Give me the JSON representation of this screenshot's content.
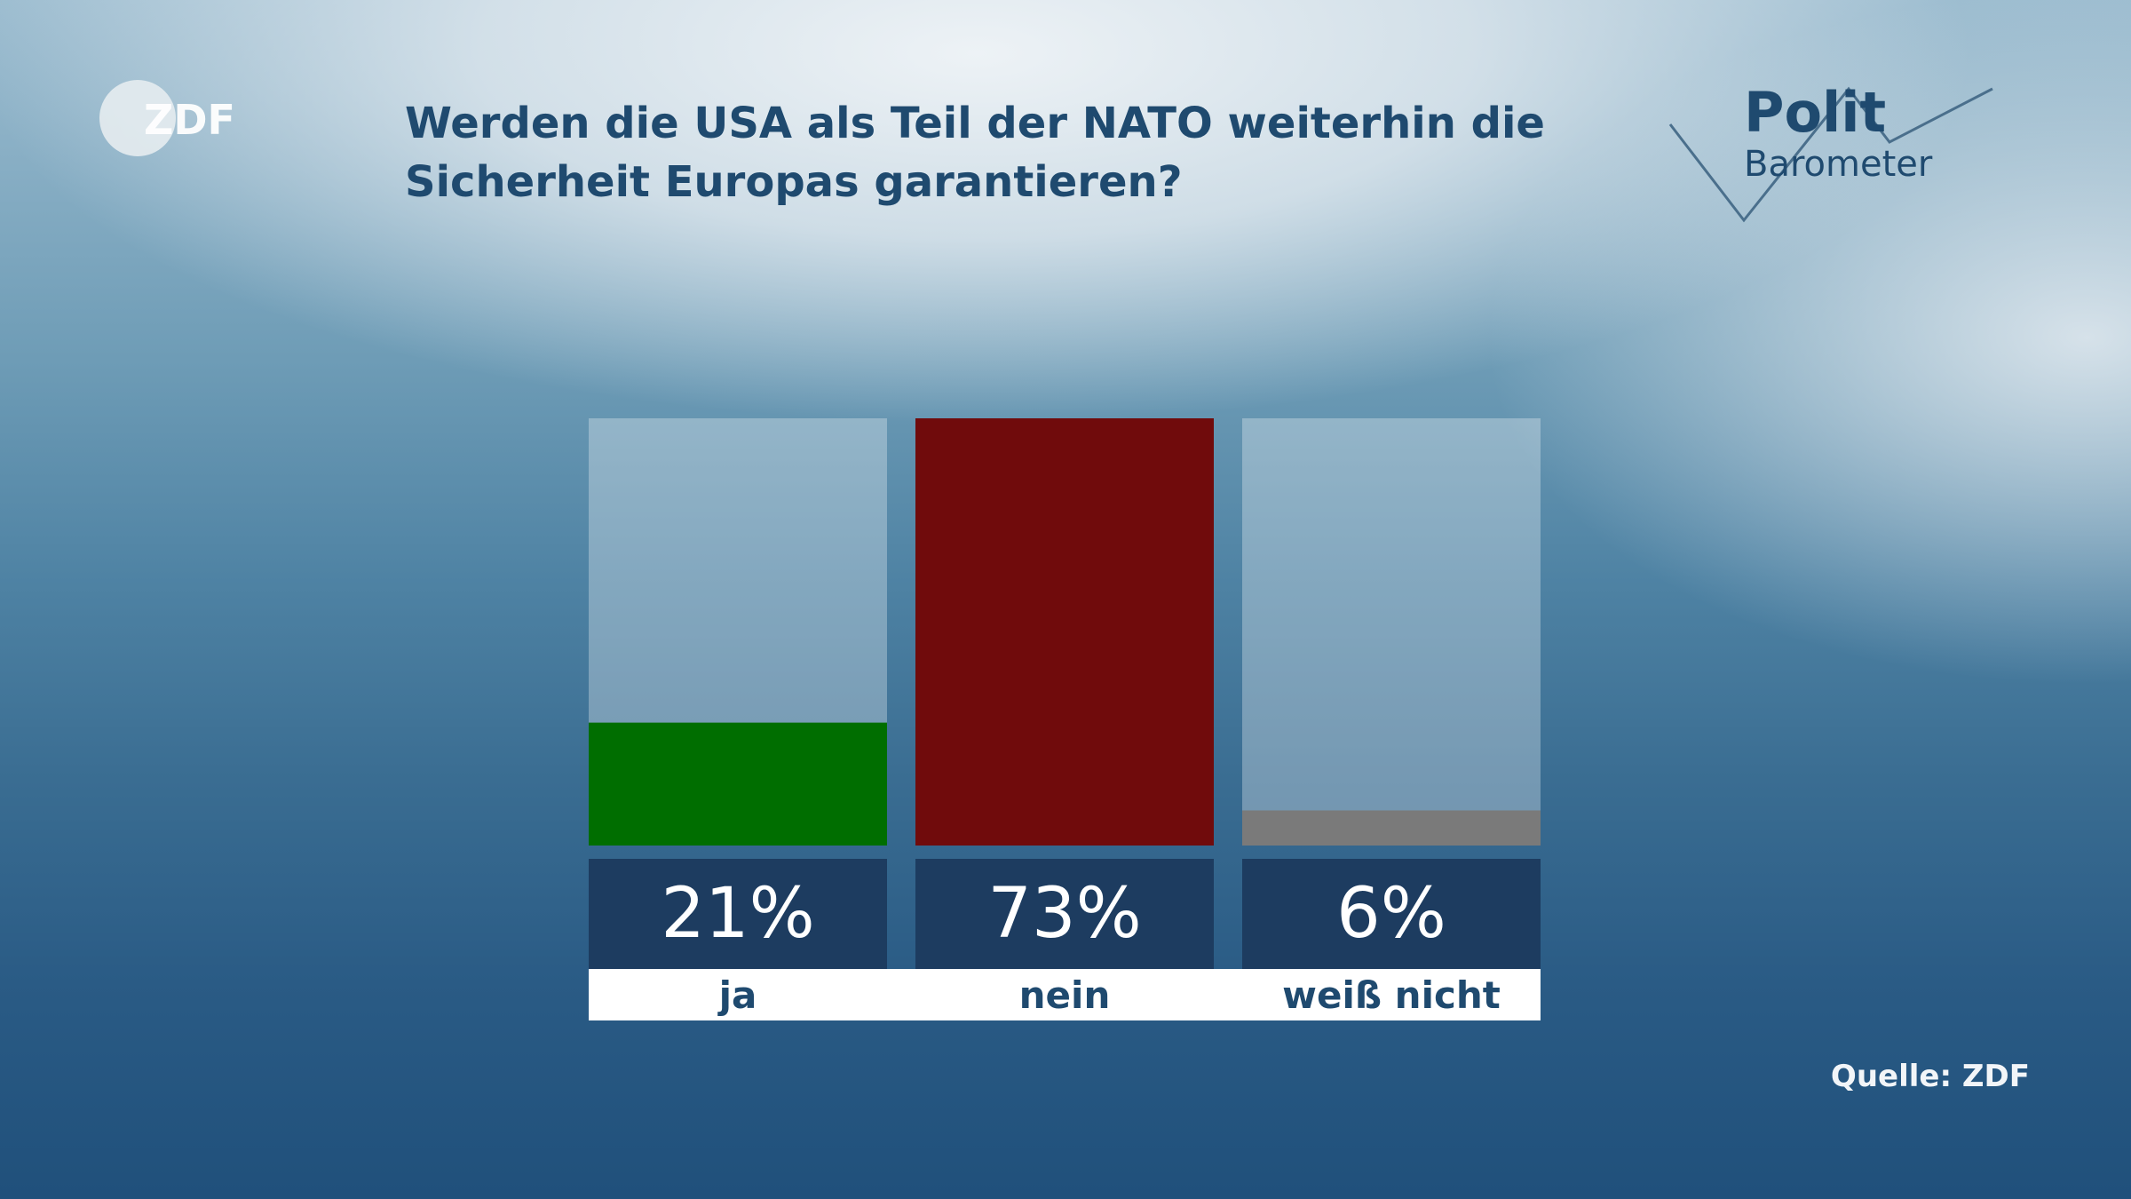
{
  "logo": {
    "brand": "ZDF",
    "product_line1": "Polit",
    "product_line2": "Barometer"
  },
  "title": "Werden die USA als Teil der NATO weiterhin die Sicherheit Europas garantieren?",
  "source": "Quelle: ZDF",
  "colors": {
    "ja": "#006e00",
    "nein": "#700b0c",
    "weiss_nicht": "#7a7a7a",
    "value_box": "#1d3c60",
    "label_bar": "#ffffff",
    "title": "#1f4a6f"
  },
  "chart_data": {
    "type": "bar",
    "title": "Werden die USA als Teil der NATO weiterhin die Sicherheit Europas garantieren?",
    "categories": [
      "ja",
      "nein",
      "weiß nicht"
    ],
    "values": [
      21,
      73,
      6
    ],
    "value_labels": [
      "21%",
      "73%",
      "6%"
    ],
    "unit": "%",
    "ylim": [
      0,
      73
    ],
    "grid": false,
    "legend": "none"
  }
}
